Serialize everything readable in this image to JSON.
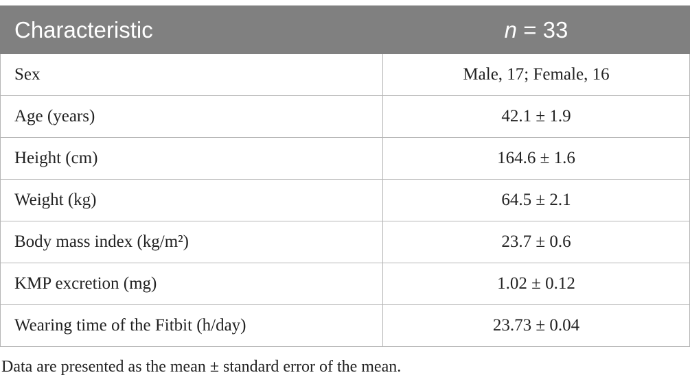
{
  "table": {
    "header": [
      "Characteristic",
      {
        "italic": "n",
        "text": "= 33"
      }
    ],
    "rows": [
      [
        "Sex",
        "Male, 17; Female, 16"
      ],
      [
        "Age (years)",
        "42.1 ± 1.9"
      ],
      [
        "Height (cm)",
        "164.6 ± 1.6"
      ],
      [
        "Weight (kg)",
        "64.5 ± 2.1"
      ],
      [
        "Body mass index (kg/m²)",
        "23.7 ± 0.6"
      ],
      [
        "KMP excretion (mg)",
        "1.02 ± 0.12"
      ],
      [
        "Wearing time of the Fitbit (h/day)",
        "23.73 ± 0.04"
      ]
    ]
  },
  "footnote": "Data are presented as the mean ± standard error of the mean."
}
